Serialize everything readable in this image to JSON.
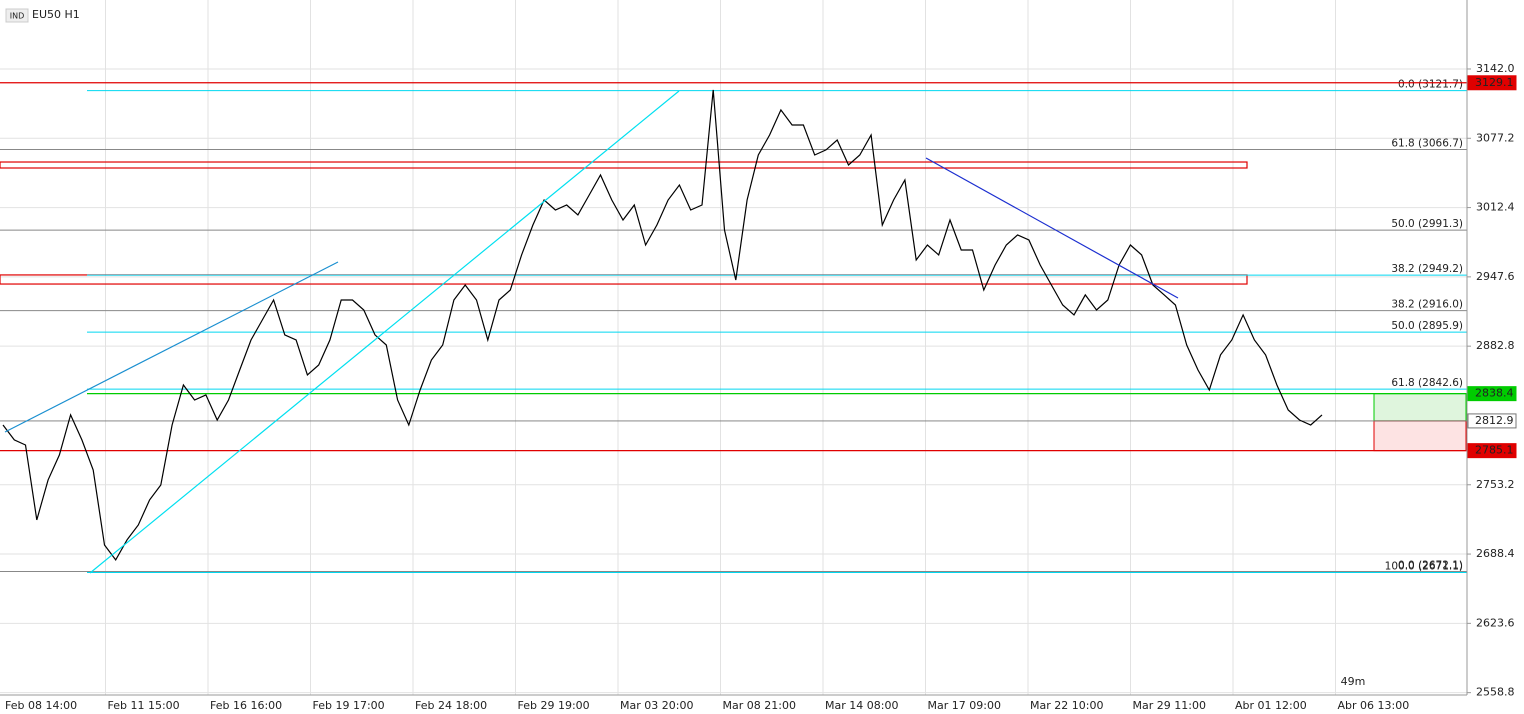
{
  "chart_data": {
    "type": "line",
    "badge": "IND",
    "title": "EU50 H1",
    "timer": "49m",
    "color": "#000000",
    "values": [
      2809.1,
      2795.1,
      2790.4,
      2720.3,
      2757.7,
      2781.1,
      2818.5,
      2795.1,
      2767.0,
      2696.9,
      2682.9,
      2701.6,
      2715.6,
      2739.0,
      2753.0,
      2809.1,
      2846.5,
      2832.5,
      2837.2,
      2813.8,
      2832.5,
      2860.5,
      2888.6,
      2907.3,
      2926.0,
      2893.3,
      2888.6,
      2855.9,
      2865.2,
      2888.6,
      2926.0,
      2926.0,
      2916.6,
      2893.3,
      2883.9,
      2832.5,
      2809.1,
      2841.8,
      2869.9,
      2883.9,
      2926.0,
      2940.0,
      2926.0,
      2888.6,
      2926.0,
      2935.3,
      2968.1,
      2996.1,
      3019.5,
      3010.1,
      3014.8,
      3005.5,
      3024.2,
      3042.9,
      3019.5,
      3000.8,
      3014.8,
      2977.4,
      2996.1,
      3019.5,
      3033.5,
      3010.1,
      3014.8,
      3122.4,
      2991.4,
      2944.7,
      3019.5,
      3061.6,
      3080.3,
      3103.7,
      3089.6,
      3089.6,
      3061.6,
      3066.3,
      3075.6,
      3052.2,
      3061.6,
      3080.3,
      2996.1,
      3019.5,
      3038.2,
      2963.4,
      2977.4,
      2968.1,
      3000.8,
      2972.7,
      2972.7,
      2935.3,
      2958.7,
      2977.4,
      2986.8,
      2982.1,
      2958.7,
      2940.0,
      2921.3,
      2912.0,
      2930.7,
      2916.6,
      2926.0,
      2958.7,
      2977.4,
      2968.1,
      2940.0,
      2930.7,
      2921.3,
      2883.9,
      2860.5,
      2841.8,
      2874.6,
      2888.6,
      2912.0,
      2888.6,
      2874.6,
      2846.5,
      2823.1,
      2813.8,
      2809.1,
      2818.5
    ],
    "x_labels": [
      "Feb 08 14:00",
      "Feb 11 15:00",
      "Feb 16 16:00",
      "Feb 19 17:00",
      "Feb 24 18:00",
      "Feb 29 19:00",
      "Mar 03 20:00",
      "Mar 08 21:00",
      "Mar 14 08:00",
      "Mar 17 09:00",
      "Mar 22 10:00",
      "Mar 29 11:00",
      "Abr 01 12:00",
      "Abr 06 13:00"
    ],
    "ylim": [
      2556.6,
      3206.5
    ],
    "yticks": [
      {
        "value": 3142,
        "label": "3142.0"
      },
      3077.2,
      3012.4,
      2947.6,
      2882.8,
      2753.2,
      2688.4,
      2623.6,
      2558.8
    ],
    "grid": true,
    "fib_levels": [
      {
        "label": "0.0 (3121.7)",
        "value": 3121.7,
        "color": "#00d8f0"
      },
      {
        "label": "61.8 (3066.7)",
        "value": 3066.7,
        "color": "#888888"
      },
      {
        "label": "50.0 (2991.3)",
        "value": 2991.3,
        "color": "#888888"
      },
      {
        "label": "38.2 (2949.2)",
        "value": 2949.2,
        "color": "#00d8f0"
      },
      {
        "label": "38.2 (2916.0)",
        "value": 2916.0,
        "color": "#888888"
      },
      {
        "label": "50.0 (2895.9)",
        "value": 2895.9,
        "color": "#00d8f0"
      },
      {
        "label": "61.8 (2842.6)",
        "value": 2842.6,
        "color": "#00d8f0"
      },
      {
        "label": "0.0 (2672.1)",
        "value": 2672.1,
        "color": "#888888"
      },
      {
        "label": "100.0 (2671.1)",
        "value": 2671.1,
        "color": "#00d8f0"
      }
    ],
    "zones": [
      {
        "high": 3055.0,
        "low": 3049.4,
        "color": "#e00000"
      },
      {
        "high": 2949.4,
        "low": 2940.9,
        "color": "#e00000"
      }
    ],
    "price_labels": [
      {
        "value": 3129.1,
        "color": "#e00000"
      },
      {
        "value": 2838.4,
        "color": "#00cc00"
      },
      {
        "value": 2812.9,
        "color": "#ffffff"
      },
      {
        "value": 2785.1,
        "color": "#e00000"
      }
    ]
  }
}
